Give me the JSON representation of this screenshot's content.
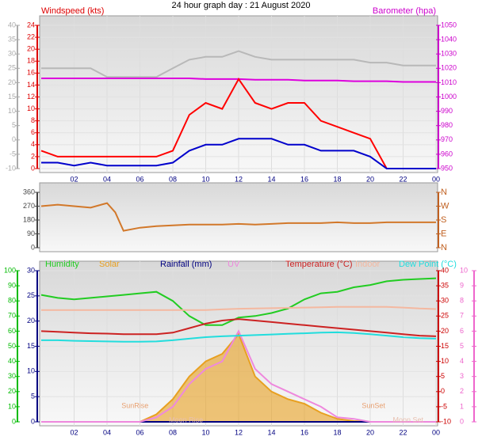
{
  "chart_data": [
    {
      "type": "line",
      "title": "24 hour graph day : 21 August 2020",
      "x": [
        0,
        1,
        2,
        3,
        4,
        5,
        6,
        7,
        8,
        9,
        10,
        11,
        12,
        13,
        14,
        15,
        16,
        17,
        18,
        19,
        20,
        21,
        22,
        23,
        24
      ],
      "xlim": [
        0,
        24
      ],
      "xticks": [
        {
          "value": 2,
          "label": "02"
        },
        {
          "value": 4,
          "label": "04"
        },
        {
          "value": 6,
          "label": "06"
        },
        {
          "value": 8,
          "label": "08"
        },
        10,
        12,
        14,
        16,
        18,
        20,
        22,
        {
          "value": 24,
          "label": "00"
        }
      ],
      "grid": true,
      "axes": [
        {
          "label": "Windspeed (kts)",
          "color": "#dd0000",
          "side": "left",
          "lim": [
            0,
            24
          ],
          "ticks": [
            0,
            2,
            4,
            6,
            8,
            10,
            12,
            14,
            16,
            18,
            20,
            22,
            24
          ]
        },
        {
          "color": "#aaaaaa",
          "side": "left",
          "lim": [
            -10,
            40
          ],
          "ticks": [
            -10,
            -5,
            0,
            5,
            10,
            15,
            20,
            25,
            30,
            35,
            40
          ]
        },
        {
          "label": "Barometer (hpa)",
          "color": "#cc00cc",
          "side": "right",
          "lim": [
            950,
            1050
          ],
          "ticks": [
            950,
            960,
            970,
            980,
            990,
            1000,
            1010,
            1020,
            1030,
            1040,
            1050
          ]
        }
      ],
      "series": [
        {
          "color": "#b8b8b8",
          "axis": 1,
          "values": [
            25,
            25,
            25,
            25,
            22,
            22,
            22,
            22,
            25,
            28,
            29,
            29,
            31,
            29,
            28,
            28,
            28,
            28,
            28,
            28,
            27,
            27,
            26,
            26,
            26
          ]
        },
        {
          "color": "#dd00dd",
          "axis": 2,
          "values": [
            1013,
            1013,
            1013,
            1013,
            1013,
            1013,
            1013,
            1013,
            1013,
            1013,
            1012.5,
            1012.5,
            1012.5,
            1012,
            1012,
            1012,
            1011.5,
            1011.5,
            1011.5,
            1011,
            1011,
            1011,
            1010.5,
            1010.5,
            1010.5
          ]
        },
        {
          "color": "#ff0000",
          "axis": 0,
          "values": [
            3,
            2,
            2,
            2,
            2,
            2,
            2,
            2,
            3,
            9,
            11,
            10,
            15,
            11,
            10,
            11,
            11,
            8,
            7,
            6,
            5,
            0,
            0,
            0,
            0
          ]
        },
        {
          "color": "#0000cc",
          "axis": 0,
          "values": [
            1,
            1,
            0.5,
            1,
            0.5,
            0.5,
            0.5,
            0.5,
            1,
            3,
            4,
            4,
            5,
            5,
            5,
            4,
            4,
            3,
            3,
            3,
            2,
            0,
            0,
            0,
            0
          ]
        }
      ]
    },
    {
      "type": "line",
      "x": [
        0,
        1,
        2,
        3,
        4,
        4.5,
        5,
        6,
        7,
        8,
        9,
        10,
        11,
        12,
        13,
        14,
        15,
        16,
        17,
        18,
        19,
        20,
        21,
        22,
        23,
        24
      ],
      "xlim": [
        0,
        24
      ],
      "axes": [
        {
          "color": "#444444",
          "side": "left",
          "lim": [
            0,
            360
          ],
          "ticks": [
            0,
            90,
            180,
            270,
            360
          ]
        },
        {
          "color": "#c06020",
          "side": "right",
          "lim": [
            0,
            360
          ],
          "ticks": [
            {
              "value": 0,
              "label": "N"
            },
            {
              "value": 90,
              "label": "E"
            },
            {
              "value": 180,
              "label": "S"
            },
            {
              "value": 270,
              "label": "W"
            },
            {
              "value": 360,
              "label": "N"
            }
          ]
        }
      ],
      "series": [
        {
          "color": "#d2782a",
          "axis": 0,
          "values": [
            270,
            280,
            270,
            260,
            290,
            230,
            110,
            130,
            140,
            145,
            150,
            150,
            150,
            155,
            150,
            155,
            160,
            160,
            160,
            165,
            160,
            160,
            165,
            165,
            165,
            165
          ]
        }
      ]
    },
    {
      "type": "line",
      "x": [
        0,
        1,
        2,
        3,
        4,
        5,
        6,
        7,
        8,
        9,
        10,
        11,
        12,
        13,
        14,
        15,
        16,
        17,
        18,
        19,
        20,
        21,
        22,
        23,
        24
      ],
      "xlim": [
        0,
        24
      ],
      "xticks": [
        {
          "value": 2,
          "label": "02"
        },
        {
          "value": 4,
          "label": "04"
        },
        {
          "value": 6,
          "label": "06"
        },
        {
          "value": 8,
          "label": "08"
        },
        10,
        12,
        14,
        16,
        18,
        20,
        22,
        {
          "value": 24,
          "label": "00"
        }
      ],
      "grid": true,
      "axes": [
        {
          "color": "#000080",
          "side": "left",
          "lim": [
            0,
            30
          ],
          "ticks": [
            0,
            5,
            10,
            15,
            20,
            25,
            30
          ]
        },
        {
          "color": "#00bb00",
          "side": "left",
          "lim": [
            0,
            100
          ],
          "ticks": [
            0,
            10,
            20,
            30,
            40,
            50,
            60,
            70,
            80,
            90,
            100
          ]
        },
        {
          "color": "#cc0000",
          "side": "right",
          "lim": [
            -10,
            40
          ],
          "ticks": [
            -10,
            -5,
            0,
            5,
            10,
            15,
            20,
            25,
            30,
            35,
            40
          ]
        },
        {
          "color": "#ee66cc",
          "side": "right",
          "lim": [
            0,
            10
          ],
          "ticks": [
            0,
            1,
            2,
            3,
            4,
            5,
            6,
            7,
            8,
            9,
            10
          ]
        },
        {
          "lim": [
            0,
            1000
          ]
        }
      ],
      "series": [
        {
          "name": "Humidity",
          "color": "#22cc22",
          "axis": 1,
          "values": [
            84,
            82,
            81,
            82,
            83,
            84,
            85,
            86,
            80,
            70,
            64,
            64,
            69,
            70,
            72,
            75,
            81,
            85,
            86,
            89,
            90.5,
            93,
            94,
            94.5,
            95
          ]
        },
        {
          "name": "Solar",
          "color": "#e8a020",
          "axis": 4,
          "fill": true,
          "values": [
            0,
            0,
            0,
            0,
            0,
            0,
            0,
            50,
            150,
            300,
            400,
            450,
            580,
            300,
            200,
            150,
            120,
            60,
            20,
            5,
            0,
            0,
            0,
            0,
            0
          ]
        },
        {
          "name": "Rainfall (mm)",
          "color": "#000080",
          "axis": 0,
          "values": [
            0,
            0,
            0,
            0,
            0,
            0,
            0,
            0,
            0,
            0,
            0,
            0,
            0,
            0,
            0,
            0,
            0,
            0,
            0,
            0,
            0,
            0,
            0,
            0,
            0
          ]
        },
        {
          "name": "UV",
          "color": "#ee88dd",
          "axis": 3,
          "values": [
            0,
            0,
            0,
            0,
            0,
            0,
            0,
            0.3,
            1,
            2.5,
            3.5,
            4,
            6,
            3.5,
            2.5,
            2,
            1.5,
            1,
            0.3,
            0.2,
            0,
            0,
            0,
            0,
            0
          ]
        },
        {
          "name": "Temperature (°C)",
          "color": "#cc2222",
          "axis": 2,
          "values": [
            20,
            19.8,
            19.5,
            19.3,
            19.2,
            19,
            19,
            19,
            19.5,
            21,
            22.5,
            23.5,
            24,
            23.5,
            23,
            22.5,
            22,
            21.5,
            21,
            20.5,
            20,
            19.5,
            19,
            18.5,
            18.3
          ]
        },
        {
          "name": "Indoor",
          "color": "#f4b8a0",
          "axis": 2,
          "values": [
            27,
            27,
            27,
            27,
            27,
            27,
            27,
            27,
            27,
            27,
            27,
            27.2,
            27.4,
            27.5,
            27.6,
            27.7,
            27.8,
            27.9,
            28,
            28,
            28,
            28,
            27.8,
            27.5,
            27.3
          ]
        },
        {
          "name": "Dew Point (°C)",
          "color": "#22dddd",
          "axis": 2,
          "values": [
            17,
            17,
            16.8,
            16.7,
            16.6,
            16.5,
            16.5,
            16.6,
            17,
            17.5,
            18,
            18.3,
            18.5,
            18.7,
            18.9,
            19.1,
            19.3,
            19.5,
            19.6,
            19.4,
            19,
            18.5,
            18,
            17.7,
            17.5
          ]
        }
      ],
      "annotations": [
        {
          "text": "SunRise",
          "x": 5.7,
          "color": "#e8a070"
        },
        {
          "text": "Moon Rise",
          "x": 8.8,
          "color": "#e8c0b0"
        },
        {
          "text": "SunSet",
          "x": 20.2,
          "color": "#e8a070"
        },
        {
          "text": "Moon Set",
          "x": 22.3,
          "color": "#e8c0b0"
        }
      ]
    }
  ]
}
